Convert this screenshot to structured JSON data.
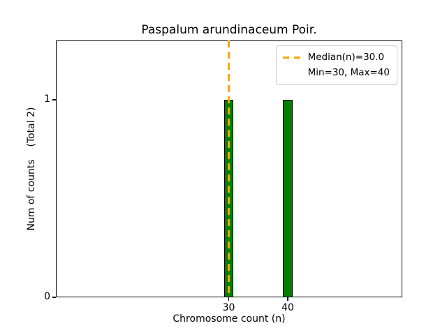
{
  "chart_data": {
    "type": "bar",
    "title": "Paspalum arundinaceum Poir.",
    "xlabel": "Chromosome count (n)",
    "ylabel": "Num of counts    (Total 2)",
    "total_counts": 2,
    "categories": [
      30,
      40
    ],
    "values": [
      1,
      1
    ],
    "bar_width": 1.6,
    "bar_color": "#008000",
    "bar_edge_color": "#000000",
    "median_line": {
      "x": 30,
      "color": "#FFA500",
      "style": "dashed"
    },
    "legend": [
      {
        "label": "Median(n)=30.0",
        "sample": "dashed-orange-line"
      },
      {
        "label": "Min=30, Max=40",
        "sample": "none"
      }
    ],
    "legend_position": "upper right",
    "xticks": [
      30,
      40
    ],
    "yticks": [
      0,
      1
    ],
    "xlim": [
      0.7,
      59.4
    ],
    "ylim": [
      0,
      1.3
    ],
    "grid": false,
    "stats": {
      "median": 30.0,
      "min": 30,
      "max": 40
    }
  }
}
